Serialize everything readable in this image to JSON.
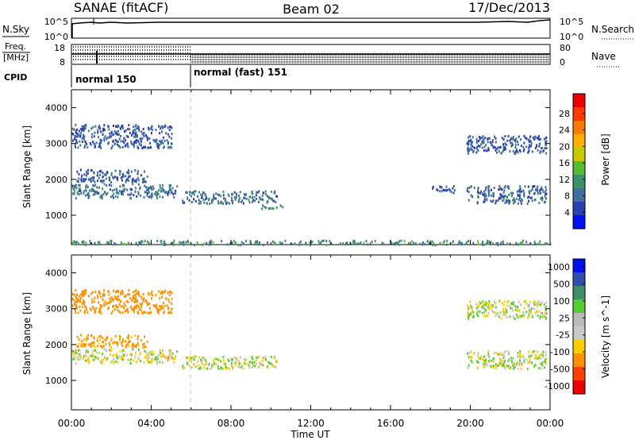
{
  "header": {
    "station": "SANAE (fitACF)",
    "beam": "Beam 02",
    "date": "17/Dec/2013"
  },
  "top_panel": {
    "left_label": "N.Sky",
    "right_label": "N.Search",
    "left_ticks": [
      "10^5",
      "10^0"
    ],
    "right_ticks": [
      "10^5",
      "10^0"
    ]
  },
  "freq_panel": {
    "left_label_1": "Freq.",
    "left_label_2": "[MHz]",
    "right_label": "Nave",
    "left_ticks": [
      "18",
      "8"
    ],
    "right_ticks": [
      "80",
      "0"
    ]
  },
  "cpid": {
    "label": "CPID",
    "segments": [
      {
        "start_hour": 0,
        "text": "normal 150"
      },
      {
        "start_hour": 6,
        "text": "normal (fast) 151"
      }
    ]
  },
  "x_axis": {
    "label": "Time UT",
    "ticks": [
      "00:00",
      "04:00",
      "08:00",
      "12:00",
      "16:00",
      "20:00",
      "00:00"
    ]
  },
  "chart_data": [
    {
      "type": "heatmap",
      "quantity": "power",
      "xlabel": "Time UT",
      "ylabel": "Slant Range [km]",
      "xlim_hours": [
        0,
        24
      ],
      "ylim_km": [
        180,
        4500
      ],
      "y_ticks": [
        1000,
        2000,
        3000,
        4000
      ],
      "colorbar": {
        "label": "Power [dB]",
        "tick_labels": [
          "4",
          "8",
          "12",
          "16",
          "20",
          "24",
          "28"
        ],
        "colors": [
          "#0011ee",
          "#2a3fb0",
          "#3f6fa0",
          "#3e8f66",
          "#55bb33",
          "#c8c800",
          "#ffb000",
          "#ff7a00",
          "#ff3a00",
          "#ee0000"
        ]
      },
      "echo_regions": [
        {
          "t0": 0.0,
          "t1": 5.3,
          "r0": 1500,
          "r1": 1900,
          "value": 8
        },
        {
          "t0": 0.2,
          "t1": 3.8,
          "r0": 1950,
          "r1": 2300,
          "value": 6
        },
        {
          "t0": 0.0,
          "t1": 5.0,
          "r0": 2900,
          "r1": 3550,
          "value": 6
        },
        {
          "t0": 5.5,
          "t1": 10.4,
          "r0": 1350,
          "r1": 1700,
          "value": 8
        },
        {
          "t0": 9.5,
          "t1": 10.6,
          "r0": 1200,
          "r1": 1350,
          "value": 10
        },
        {
          "t0": 18.0,
          "t1": 19.2,
          "r0": 1650,
          "r1": 1850,
          "value": 6
        },
        {
          "t0": 19.8,
          "t1": 23.8,
          "r0": 1350,
          "r1": 1850,
          "value": 7
        },
        {
          "t0": 19.8,
          "t1": 23.8,
          "r0": 2750,
          "r1": 3250,
          "value": 6
        },
        {
          "t0": 0.0,
          "t1": 24.0,
          "r0": 200,
          "r1": 320,
          "value": 10
        }
      ]
    },
    {
      "type": "heatmap",
      "quantity": "velocity",
      "xlabel": "Time UT",
      "ylabel": "Slant Range [km]",
      "xlim_hours": [
        0,
        24
      ],
      "ylim_km": [
        180,
        4500
      ],
      "y_ticks": [
        1000,
        2000,
        3000,
        4000
      ],
      "colorbar": {
        "label": "Velocity [m s^-1]",
        "tick_labels": [
          "1000",
          "500",
          "100",
          "25",
          "-25",
          "-100",
          "-500",
          "-1000"
        ],
        "colors": [
          "#0011ee",
          "#2f4fb0",
          "#3f8f66",
          "#55cc33",
          "#bbbbbb",
          "#c8c8c8",
          "#ffcc00",
          "#ff9000",
          "#ff4000",
          "#ee0000"
        ]
      },
      "echo_regions": [
        {
          "t0": 0.0,
          "t1": 5.3,
          "r0": 1500,
          "r1": 1900,
          "value": -20
        },
        {
          "t0": 0.2,
          "t1": 3.8,
          "r0": 1950,
          "r1": 2300,
          "value": -150
        },
        {
          "t0": 0.0,
          "t1": 5.0,
          "r0": 2900,
          "r1": 3550,
          "value": -300
        },
        {
          "t0": 5.5,
          "t1": 10.4,
          "r0": 1350,
          "r1": 1700,
          "value": 0
        },
        {
          "t0": 19.8,
          "t1": 23.8,
          "r0": 1350,
          "r1": 1850,
          "value": 5
        },
        {
          "t0": 19.8,
          "t1": 23.8,
          "r0": 2750,
          "r1": 3250,
          "value": 0
        }
      ]
    }
  ]
}
